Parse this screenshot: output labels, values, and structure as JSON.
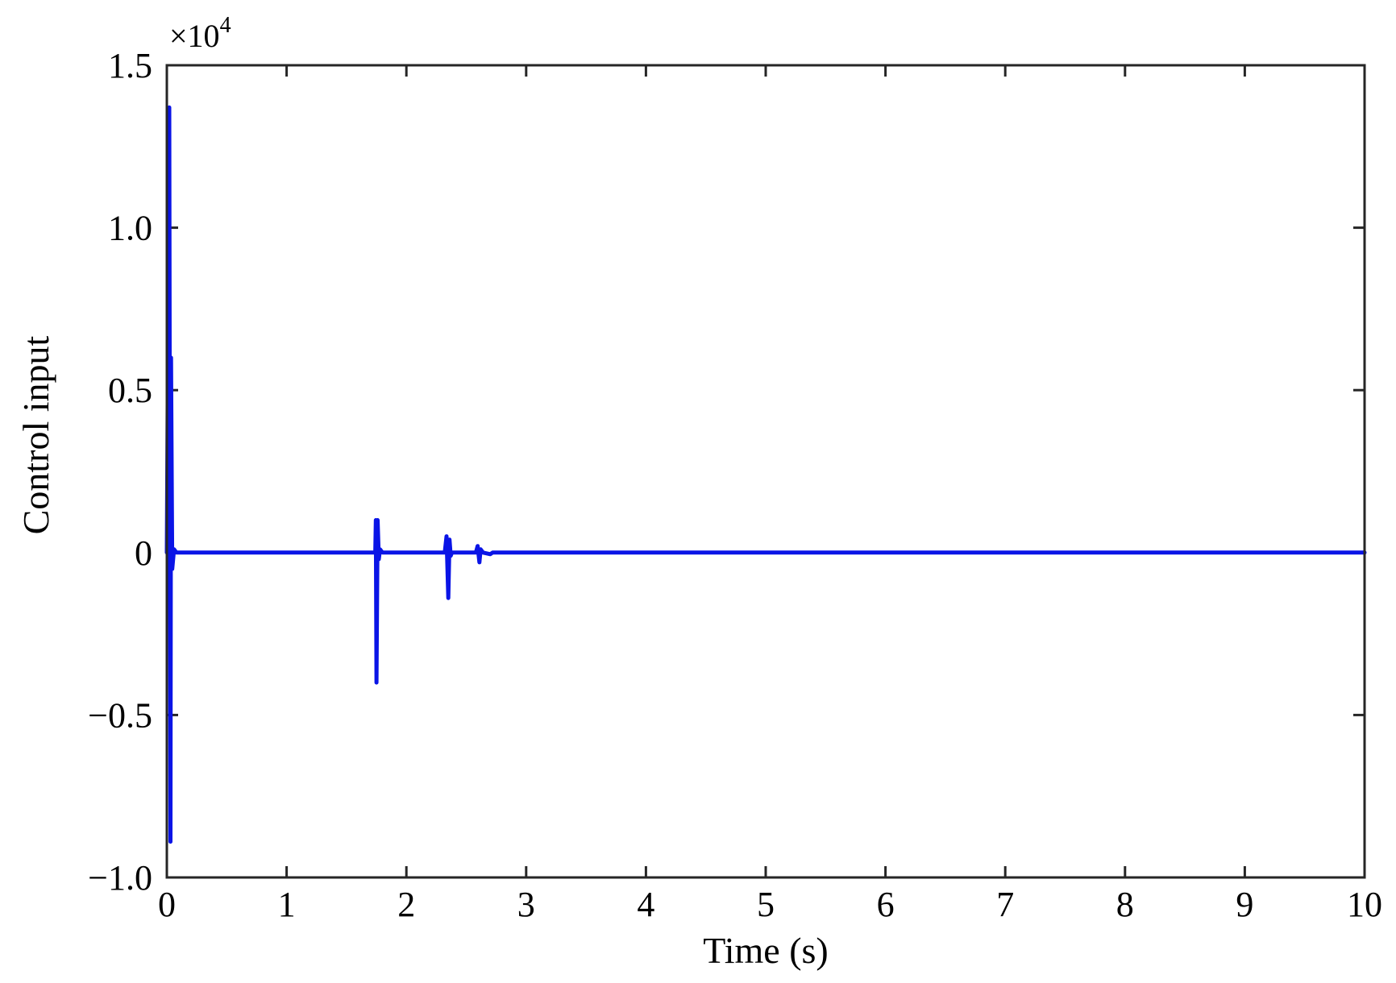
{
  "chart_data": {
    "type": "line",
    "title": "",
    "xlabel": "Time (s)",
    "ylabel": "Control input",
    "y_multiplier_label": "×10",
    "y_multiplier_exponent": "4",
    "xlim": [
      0,
      10
    ],
    "ylim": [
      -1.0,
      1.5
    ],
    "x_ticks": [
      0,
      1,
      2,
      3,
      4,
      5,
      6,
      7,
      8,
      9,
      10
    ],
    "x_tick_labels": [
      "0",
      "1",
      "2",
      "3",
      "4",
      "5",
      "6",
      "7",
      "8",
      "9",
      "10"
    ],
    "y_ticks": [
      -1.0,
      -0.5,
      0,
      0.5,
      1.0,
      1.5
    ],
    "y_tick_labels": [
      "−1.0",
      "−0.5",
      "0",
      "0.5",
      "1.0",
      "1.5"
    ],
    "grid": false,
    "box": true,
    "colors": {
      "series": "#0a14e6",
      "axes": "#262626",
      "background": "#ffffff"
    },
    "series": [
      {
        "x": [
          0,
          0.02,
          0.03,
          0.035,
          0.045,
          0.06,
          0.08,
          1.74,
          1.745,
          1.75,
          1.76,
          1.77,
          1.78,
          1.8,
          2.32,
          2.335,
          2.35,
          2.36,
          2.37,
          2.38,
          2.58,
          2.595,
          2.61,
          2.62,
          2.64,
          2.7,
          2.72,
          10
        ],
        "y": [
          0,
          1.37,
          -0.89,
          0.6,
          -0.05,
          0.01,
          0.0,
          0.0,
          0.1,
          -0.4,
          0.1,
          -0.02,
          0.01,
          0.0,
          0.0,
          0.05,
          -0.14,
          0.04,
          -0.01,
          0.0,
          0.0,
          0.02,
          -0.03,
          0.01,
          0.0,
          -0.005,
          0.0,
          0.0
        ]
      }
    ]
  }
}
